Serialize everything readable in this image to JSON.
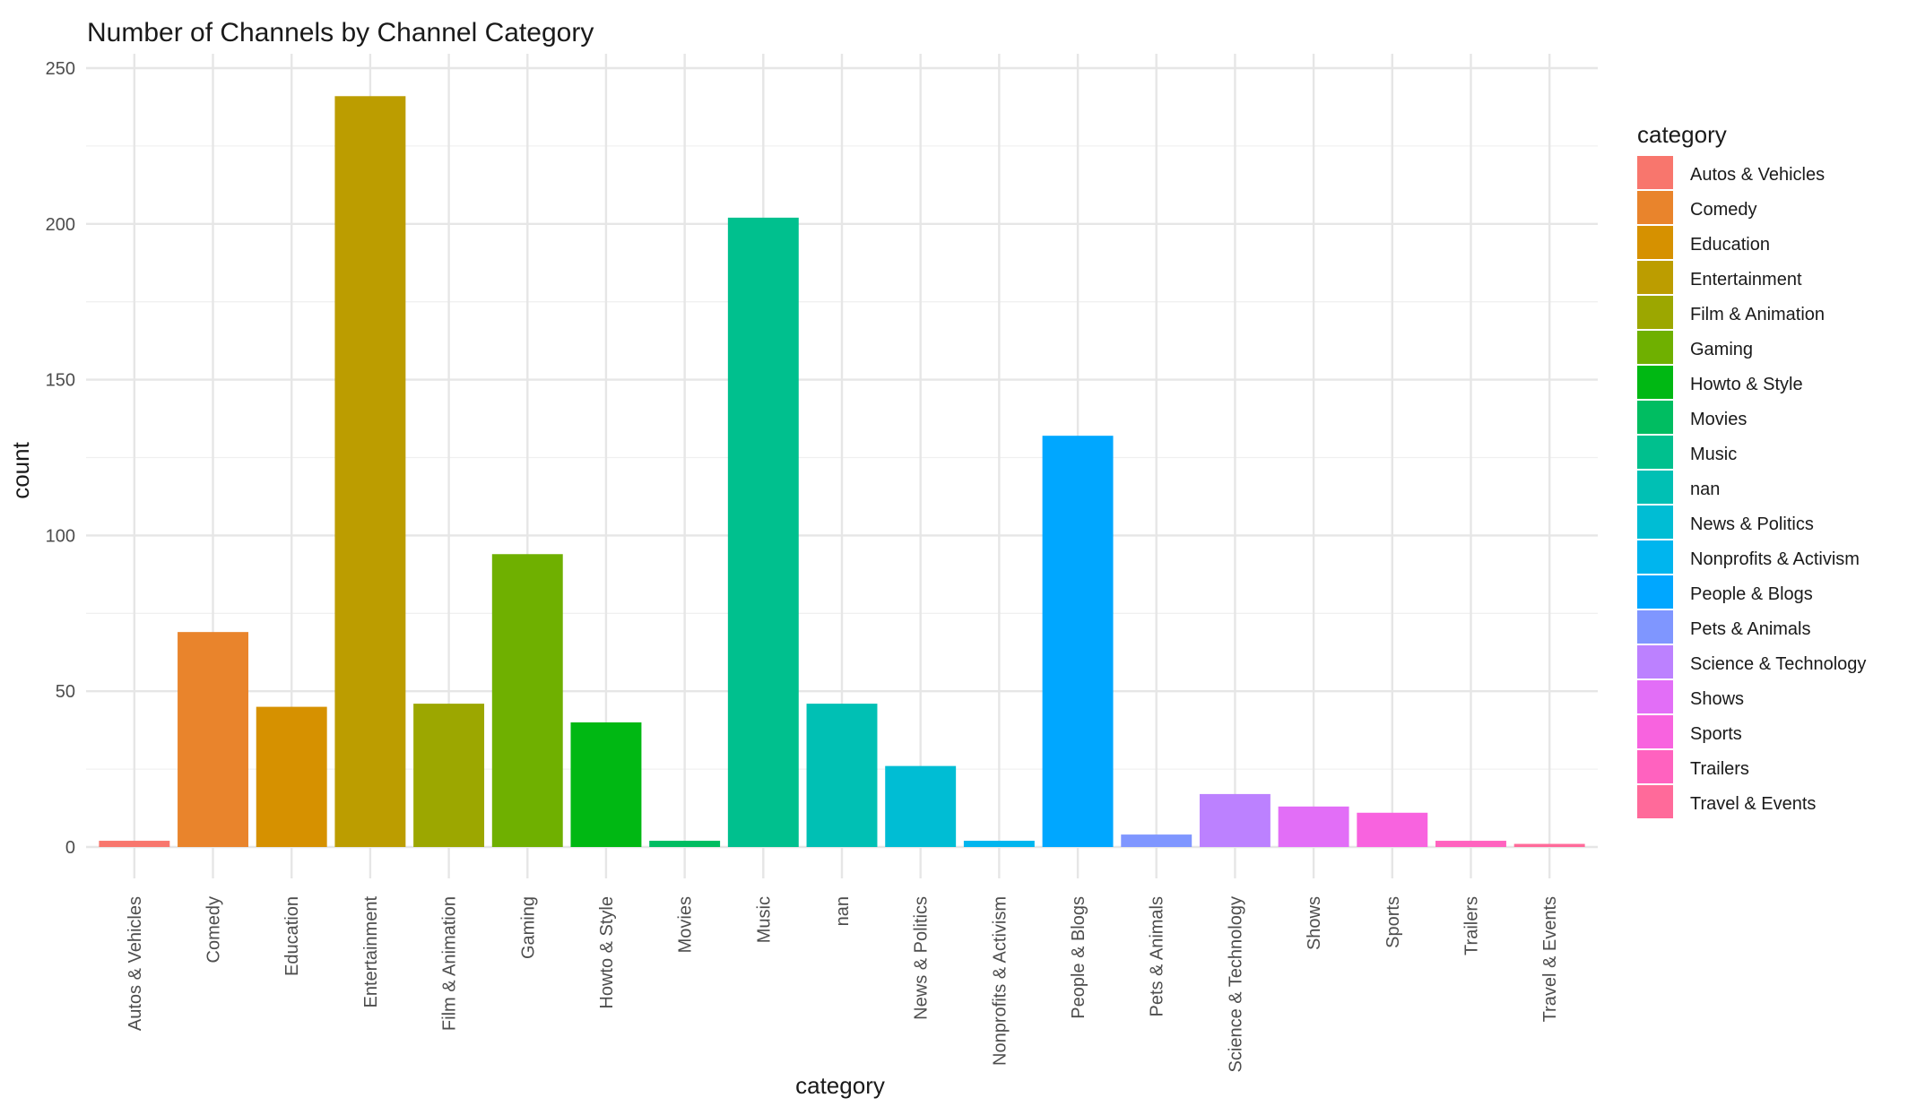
{
  "chart_data": {
    "type": "bar",
    "title": "Number of Channels by Channel Category",
    "xlabel": "category",
    "ylabel": "count",
    "ylim": [
      0,
      250
    ],
    "y_ticks": [
      0,
      50,
      100,
      150,
      200,
      250
    ],
    "grid": true,
    "legend": {
      "title": "category",
      "placement": "right"
    },
    "categories": [
      "Autos & Vehicles",
      "Comedy",
      "Education",
      "Entertainment",
      "Film & Animation",
      "Gaming",
      "Howto & Style",
      "Movies",
      "Music",
      "nan",
      "News & Politics",
      "Nonprofits & Activism",
      "People & Blogs",
      "Pets & Animals",
      "Science & Technology",
      "Shows",
      "Sports",
      "Trailers",
      "Travel & Events"
    ],
    "values": [
      2,
      69,
      45,
      241,
      46,
      94,
      40,
      2,
      202,
      46,
      26,
      2,
      132,
      4,
      17,
      13,
      11,
      2,
      1
    ],
    "colors": [
      "#F8766D",
      "#E9842C",
      "#D69100",
      "#BC9D00",
      "#9CA700",
      "#6FB000",
      "#00B813",
      "#00BD61",
      "#00C08E",
      "#00C0B4",
      "#00BDD4",
      "#00B5EE",
      "#00A7FF",
      "#7F96FF",
      "#BC81FF",
      "#E26EF7",
      "#F863DF",
      "#FF62BF",
      "#FF6A9A"
    ]
  }
}
